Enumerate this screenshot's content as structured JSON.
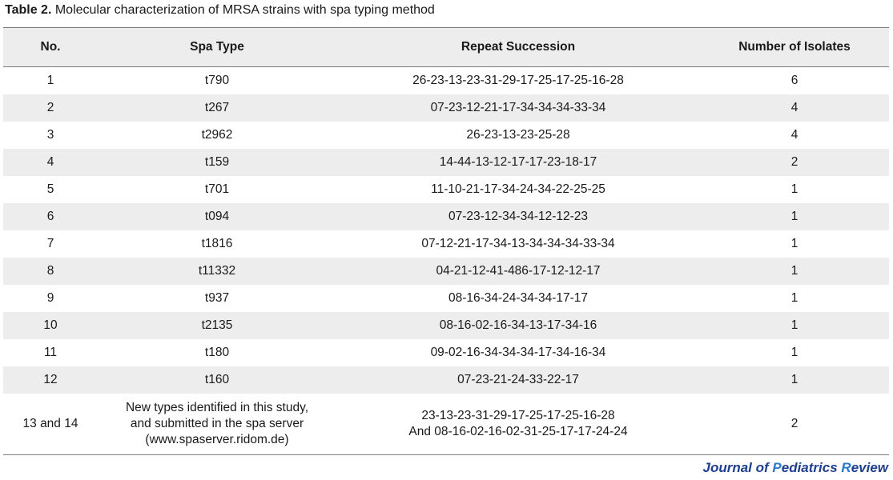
{
  "caption": {
    "label": "Table 2.",
    "text": " Molecular characterization of MRSA strains with spa typing method"
  },
  "table": {
    "headers": [
      "No.",
      "Spa Type",
      "Repeat Succession",
      "Number of Isolates"
    ],
    "rows": [
      {
        "no": "1",
        "spa": "t790",
        "repeat": "26-23-13-23-31-29-17-25-17-25-16-28",
        "isolates": "6"
      },
      {
        "no": "2",
        "spa": "t267",
        "repeat": "07-23-12-21-17-34-34-34-33-34",
        "isolates": "4"
      },
      {
        "no": "3",
        "spa": "t2962",
        "repeat": "26-23-13-23-25-28",
        "isolates": "4"
      },
      {
        "no": "4",
        "spa": "t159",
        "repeat": "14-44-13-12-17-17-23-18-17",
        "isolates": "2"
      },
      {
        "no": "5",
        "spa": "t701",
        "repeat": "11-10-21-17-34-24-34-22-25-25",
        "isolates": "1"
      },
      {
        "no": "6",
        "spa": "t094",
        "repeat": "07-23-12-34-34-12-12-23",
        "isolates": "1"
      },
      {
        "no": "7",
        "spa": "t1816",
        "repeat": "07-12-21-17-34-13-34-34-34-33-34",
        "isolates": "1"
      },
      {
        "no": "8",
        "spa": "t11332",
        "repeat": "04-21-12-41-486-17-12-12-17",
        "isolates": "1"
      },
      {
        "no": "9",
        "spa": "t937",
        "repeat": "08-16-34-24-34-34-17-17",
        "isolates": "1"
      },
      {
        "no": "10",
        "spa": "t2135",
        "repeat": "08-16-02-16-34-13-17-34-16",
        "isolates": "1"
      },
      {
        "no": "11",
        "spa": "t180",
        "repeat": "09-02-16-34-34-34-17-34-16-34",
        "isolates": "1"
      },
      {
        "no": "12",
        "spa": "t160",
        "repeat": "07-23-21-24-33-22-17",
        "isolates": "1"
      }
    ],
    "last_row": {
      "no": "13 and 14",
      "spa_lines": [
        "New types identified in this study,",
        "and submitted in the spa server",
        "(www.spaserver.ridom.de)"
      ],
      "repeat_lines": [
        "23-13-23-31-29-17-25-17-25-16-28",
        "And 08-16-02-16-02-31-25-17-17-24-24"
      ],
      "isolates": "2"
    }
  },
  "journal": {
    "j": "J",
    "ournal_of": "ournal of ",
    "p": "P",
    "ediatrics": "ediatrics ",
    "r": "R",
    "eview": "eview"
  }
}
